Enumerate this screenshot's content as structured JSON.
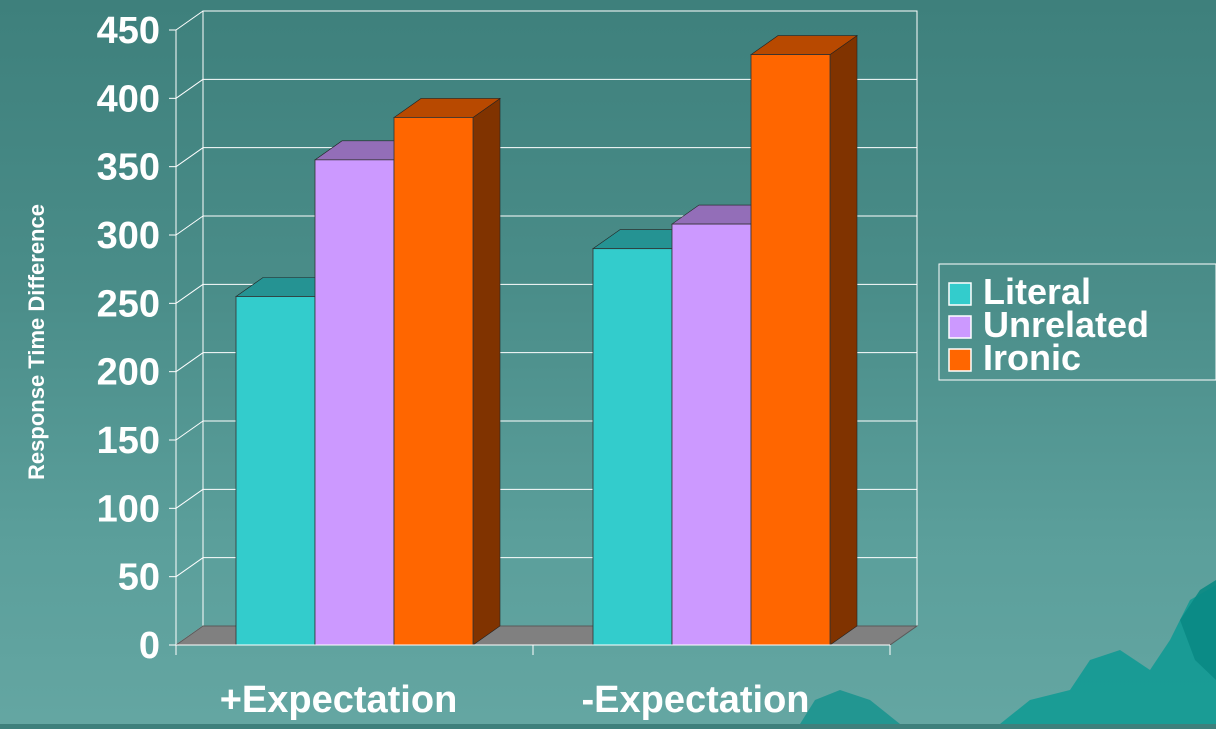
{
  "chart_data": {
    "type": "bar",
    "style": "3d-clustered-column",
    "categories": [
      "+Expectation",
      "-Expectation"
    ],
    "series": [
      {
        "name": "Literal",
        "values": [
          255,
          290
        ],
        "color": "#33cccc"
      },
      {
        "name": "Unrelated",
        "values": [
          355,
          308
        ],
        "color": "#cc99ff"
      },
      {
        "name": "Ironic",
        "values": [
          386,
          432
        ],
        "color": "#ff6600"
      }
    ],
    "title": "",
    "xlabel": "",
    "ylabel": "Response Time Difference",
    "ylim": [
      0,
      450
    ],
    "yticks": [
      "0",
      "50",
      "100",
      "150",
      "200",
      "250",
      "300",
      "350",
      "400",
      "450"
    ],
    "grid": true,
    "legend": "right",
    "colors": {
      "background": "#4a8d89",
      "grid": "#ffffff",
      "axis_text": "#ffffff",
      "floor": "#808080"
    }
  }
}
